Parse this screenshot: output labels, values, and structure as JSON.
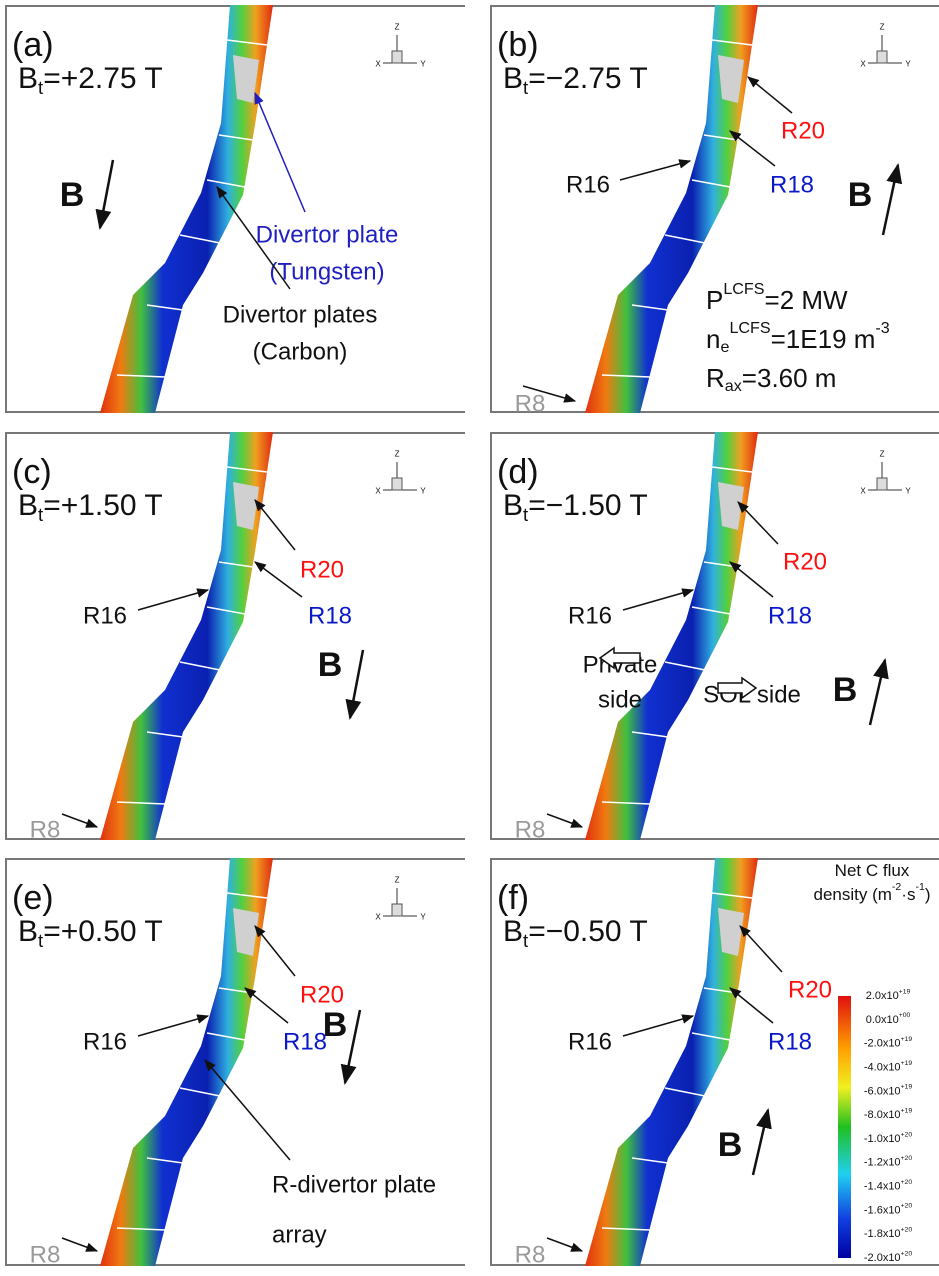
{
  "panels": [
    {
      "label": "(a)",
      "field": [
        {
          "text": "B"
        },
        {
          "sub": "t"
        },
        {
          "text": "=+2.75 T"
        }
      ],
      "b_label": "B",
      "triad": [
        "Z",
        "X",
        "Y"
      ],
      "annotations": [
        [
          "Divertor plate",
          "(Tungsten)"
        ],
        [
          "Divertor plates",
          "(Carbon)"
        ]
      ]
    },
    {
      "label": "(b)",
      "field": [
        {
          "text": "B"
        },
        {
          "sub": "t"
        },
        {
          "text": "=−2.75 T"
        }
      ],
      "b_label": "B",
      "triad": [
        "Z",
        "X",
        "Y"
      ],
      "annotations": [
        [
          "R20"
        ],
        [
          "R16"
        ],
        [
          "R18"
        ],
        [
          "R8"
        ]
      ],
      "parameters": [
        [
          {
            "text": "P"
          },
          {
            "sup": "LCFS"
          },
          {
            "text": "=2 MW"
          }
        ],
        [
          {
            "text": "n"
          },
          {
            "sub": "e"
          },
          {
            "sup": "LCFS"
          },
          {
            "text": "=1E19 m"
          },
          {
            "sup": "-3"
          }
        ],
        [
          {
            "text": "R"
          },
          {
            "sub": "ax"
          },
          {
            "text": "=3.60 m"
          }
        ]
      ]
    },
    {
      "label": "(c)",
      "field": [
        {
          "text": "B"
        },
        {
          "sub": "t"
        },
        {
          "text": "=+1.50 T"
        }
      ],
      "b_label": "B",
      "triad": [
        "Z",
        "X",
        "Y"
      ],
      "annotations": [
        [
          "R20"
        ],
        [
          "R16"
        ],
        [
          "R18"
        ],
        [
          "R8"
        ]
      ]
    },
    {
      "label": "(d)",
      "field": [
        {
          "text": "B"
        },
        {
          "sub": "t"
        },
        {
          "text": "=−1.50 T"
        }
      ],
      "b_label": "B",
      "triad": [
        "Z",
        "X",
        "Y"
      ],
      "annotations": [
        [
          "R20"
        ],
        [
          "R16"
        ],
        [
          "R18"
        ],
        [
          "R8"
        ],
        [
          "Private",
          "side"
        ],
        [
          "SOL side"
        ]
      ]
    },
    {
      "label": "(e)",
      "field": [
        {
          "text": "B"
        },
        {
          "sub": "t"
        },
        {
          "text": "=+0.50 T"
        }
      ],
      "b_label": "B",
      "triad": [
        "Z",
        "X",
        "Y"
      ],
      "annotations": [
        [
          "R20"
        ],
        [
          "R16"
        ],
        [
          "R18"
        ],
        [
          "R8"
        ],
        [
          "R-divertor plate",
          "array"
        ]
      ]
    },
    {
      "label": "(f)",
      "field": [
        {
          "text": "B"
        },
        {
          "sub": "t"
        },
        {
          "text": "=−0.50 T"
        }
      ],
      "b_label": "B",
      "annotations": [
        [
          "R20"
        ],
        [
          "R16"
        ],
        [
          "R18"
        ],
        [
          "R8"
        ]
      ]
    }
  ],
  "colorbar": {
    "title": [
      [
        {
          "text": "Net C flux"
        }
      ],
      [
        {
          "text": "density (m"
        },
        {
          "sup": "-2"
        },
        {
          "text": "·s"
        },
        {
          "sup": "-1"
        },
        {
          "text": ")"
        }
      ]
    ],
    "ticks": [
      [
        {
          "text": "2.0x10"
        },
        {
          "sup": "+19"
        }
      ],
      [
        {
          "text": "0.0x10"
        },
        {
          "sup": "+00"
        }
      ],
      [
        {
          "text": "-2.0x10"
        },
        {
          "sup": "+19"
        }
      ],
      [
        {
          "text": "-4.0x10"
        },
        {
          "sup": "+19"
        }
      ],
      [
        {
          "text": "-6.0x10"
        },
        {
          "sup": "+19"
        }
      ],
      [
        {
          "text": "-8.0x10"
        },
        {
          "sup": "+19"
        }
      ],
      [
        {
          "text": "-1.0x10"
        },
        {
          "sup": "+20"
        }
      ],
      [
        {
          "text": "-1.2x10"
        },
        {
          "sup": "+20"
        }
      ],
      [
        {
          "text": "-1.4x10"
        },
        {
          "sup": "+20"
        }
      ],
      [
        {
          "text": "-1.6x10"
        },
        {
          "sup": "+20"
        }
      ],
      [
        {
          "text": "-1.8x10"
        },
        {
          "sup": "+20"
        }
      ],
      [
        {
          "text": "-2.0x10"
        },
        {
          "sup": "+20"
        }
      ]
    ]
  }
}
